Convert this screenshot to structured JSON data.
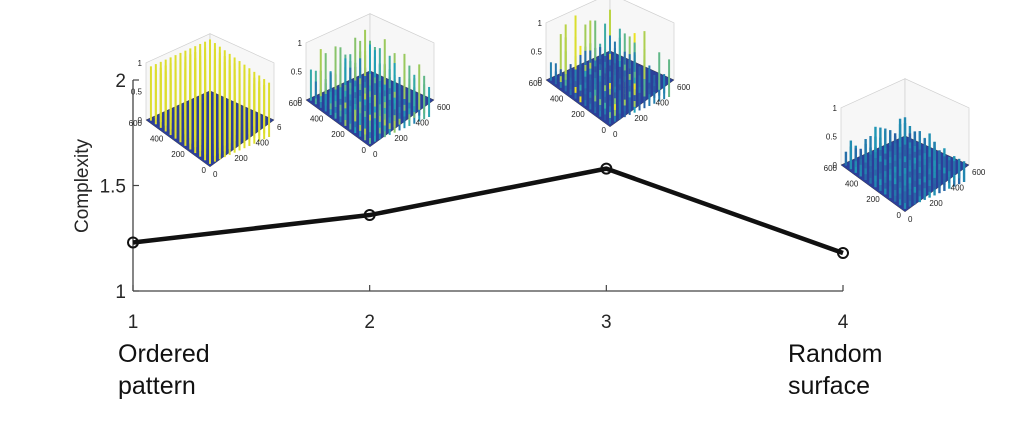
{
  "chart_data": {
    "type": "line",
    "x": [
      1,
      2,
      3,
      4
    ],
    "values": [
      1.23,
      1.36,
      1.58,
      1.18
    ],
    "xlabel": "",
    "ylabel": "Complexity",
    "xlim": [
      1,
      4
    ],
    "ylim": [
      1,
      2
    ],
    "x_ticks": [
      "1",
      "2",
      "3",
      "4"
    ],
    "y_ticks": [
      "1",
      "1.5",
      "2"
    ],
    "grid": false,
    "category_labels": [
      {
        "x": 1,
        "lines": [
          "Ordered",
          "pattern"
        ]
      },
      {
        "x": 4,
        "lines": [
          "Random",
          "surface"
        ]
      }
    ],
    "line_color": "#111111",
    "insets": [
      {
        "name": "surface-plot-1",
        "style": "ordered",
        "z_ticks": [
          "0",
          "0.5",
          "1"
        ],
        "y_ticks": [
          "0",
          "200",
          "400",
          "600"
        ],
        "x_ticks": [
          "0",
          "200",
          "400",
          "6"
        ]
      },
      {
        "name": "surface-plot-2",
        "style": "semi",
        "z_ticks": [
          "0",
          "0.5",
          "1"
        ],
        "y_ticks": [
          "0",
          "200",
          "400",
          "600"
        ],
        "x_ticks": [
          "0",
          "200",
          "400",
          "600"
        ]
      },
      {
        "name": "surface-plot-3",
        "style": "peaks",
        "z_ticks": [
          "0",
          "0.5",
          "1"
        ],
        "y_ticks": [
          "0",
          "200",
          "400",
          "600"
        ],
        "x_ticks": [
          "0",
          "200",
          "400",
          "600"
        ]
      },
      {
        "name": "surface-plot-4",
        "style": "random",
        "z_ticks": [
          "0",
          "0.5",
          "1"
        ],
        "y_ticks": [
          "0",
          "200",
          "400",
          "600"
        ],
        "x_ticks": [
          "0",
          "200",
          "400",
          "600"
        ]
      }
    ],
    "colors": {
      "surface_low": "#2c3f9a",
      "surface_mid": "#1fa2b8",
      "surface_high": "#f2e51d"
    }
  }
}
